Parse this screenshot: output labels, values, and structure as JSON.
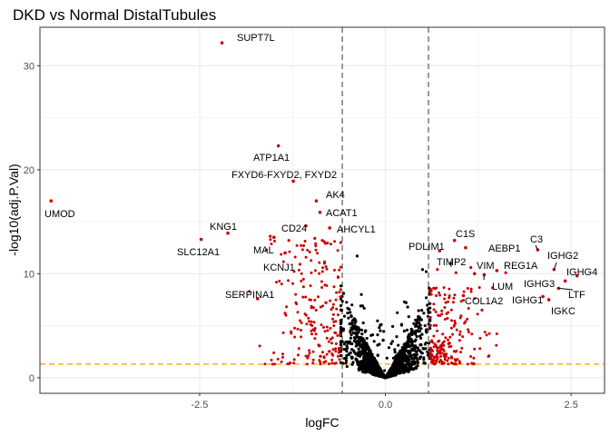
{
  "chart_data": {
    "type": "scatter",
    "title": "DKD vs Normal DistalTubules",
    "xlabel": "logFC",
    "ylabel": "-log10(adj.P.Val)",
    "xlim": [
      -4.65,
      2.95
    ],
    "ylim": [
      -1.5,
      33.7
    ],
    "x_ticks": [
      -2.5,
      0.0,
      2.5
    ],
    "x_tick_labels": [
      "-2.5",
      "0.0",
      "2.5"
    ],
    "y_ticks": [
      0,
      10,
      20,
      30
    ],
    "y_tick_labels": [
      "0",
      "10",
      "20",
      "30"
    ],
    "grid": true,
    "background": "#ffffff",
    "colors": {
      "significant": "#cc0000",
      "not_significant": "#000000",
      "logfc_threshold_line": "#666666",
      "pvalue_threshold_line": "#ffa500",
      "grid": "#ebebeb",
      "panel_border": "#333333"
    },
    "thresholds": {
      "logFC": [
        -0.58,
        0.58
      ],
      "neg_log10_p": 1.3
    },
    "labeled_genes": [
      {
        "gene": "SUPT7L",
        "x": -2.2,
        "y": 32.2
      },
      {
        "gene": "ATP1A1",
        "x": -1.44,
        "y": 22.3
      },
      {
        "gene": "FXYD6-FXYD2, FXYD2",
        "x": -1.24,
        "y": 18.9
      },
      {
        "gene": "UMOD",
        "x": -4.5,
        "y": 17.0
      },
      {
        "gene": "AK4",
        "x": -0.93,
        "y": 17.0
      },
      {
        "gene": "ACAT1",
        "x": -0.88,
        "y": 15.9
      },
      {
        "gene": "KNG1",
        "x": -2.12,
        "y": 13.9
      },
      {
        "gene": "CD24",
        "x": -1.07,
        "y": 14.6
      },
      {
        "gene": "AHCYL1",
        "x": -0.75,
        "y": 14.4
      },
      {
        "gene": "SLC12A1",
        "x": -2.48,
        "y": 13.3
      },
      {
        "gene": "MAL",
        "x": -1.5,
        "y": 13.5
      },
      {
        "gene": "KCNJ1",
        "x": -1.35,
        "y": 12.0
      },
      {
        "gene": "SERPINA1",
        "x": -1.72,
        "y": 7.6
      },
      {
        "gene": "C1S",
        "x": 0.93,
        "y": 13.2
      },
      {
        "gene": "PDLIM1",
        "x": 0.73,
        "y": 12.2
      },
      {
        "gene": "AEBP1",
        "x": 1.08,
        "y": 12.5
      },
      {
        "gene": "C3",
        "x": 2.05,
        "y": 12.3
      },
      {
        "gene": "TIMP2",
        "x": 0.88,
        "y": 11.0
      },
      {
        "gene": "VIM",
        "x": 1.2,
        "y": 10.0
      },
      {
        "gene": "REG1A",
        "x": 1.5,
        "y": 10.3
      },
      {
        "gene": "IGHG2",
        "x": 2.27,
        "y": 10.4
      },
      {
        "gene": "IGHG4",
        "x": 2.58,
        "y": 9.8
      },
      {
        "gene": "LUM",
        "x": 1.33,
        "y": 9.9
      },
      {
        "gene": "IGHG3",
        "x": 2.42,
        "y": 9.3
      },
      {
        "gene": "COL1A2",
        "x": 1.05,
        "y": 7.9
      },
      {
        "gene": "IGHG1",
        "x": 2.12,
        "y": 7.8
      },
      {
        "gene": "LTF",
        "x": 2.33,
        "y": 8.6
      },
      {
        "gene": "IGKC",
        "x": 2.2,
        "y": 7.5
      }
    ],
    "extra_significant_points": [
      {
        "x": -1.35,
        "y": 6.2
      },
      {
        "x": -1.55,
        "y": 13.6
      },
      {
        "x": -1.3,
        "y": 13.2
      },
      {
        "x": -1.1,
        "y": 12.7
      },
      {
        "x": -0.95,
        "y": 13.4
      },
      {
        "x": -0.85,
        "y": 13.2
      },
      {
        "x": -1.15,
        "y": 10.9
      },
      {
        "x": -0.6,
        "y": 13.0
      },
      {
        "x": -0.82,
        "y": 11.0
      },
      {
        "x": 1.3,
        "y": 6.5
      },
      {
        "x": 0.95,
        "y": 10.1
      },
      {
        "x": 1.62,
        "y": 10.1
      },
      {
        "x": 0.7,
        "y": 10.4
      },
      {
        "x": 1.15,
        "y": 10.6
      }
    ]
  },
  "labels": {
    "SUPT7L": "SUPT7L",
    "ATP1A1": "ATP1A1",
    "FXYD": "FXYD6-FXYD2, FXYD2",
    "UMOD": "UMOD",
    "AK4": "AK4",
    "ACAT1": "ACAT1",
    "KNG1": "KNG1",
    "CD24": "CD24",
    "AHCYL1": "AHCYL1",
    "SLC12A1": "SLC12A1",
    "MAL": "MAL",
    "KCNJ1": "KCNJ1",
    "SERPINA1": "SERPINA1",
    "C1S": "C1S",
    "PDLIM1": "PDLIM1",
    "AEBP1": "AEBP1",
    "C3": "C3",
    "TIMP2": "TIMP2",
    "VIM": "VIM",
    "REG1A": "REG1A",
    "IGHG2": "IGHG2",
    "IGHG4": "IGHG4",
    "LUM": "LUM",
    "IGHG3": "IGHG3",
    "COL1A2": "COL1A2",
    "IGHG1": "IGHG1",
    "LTF": "LTF",
    "IGKC": "IGKC"
  }
}
